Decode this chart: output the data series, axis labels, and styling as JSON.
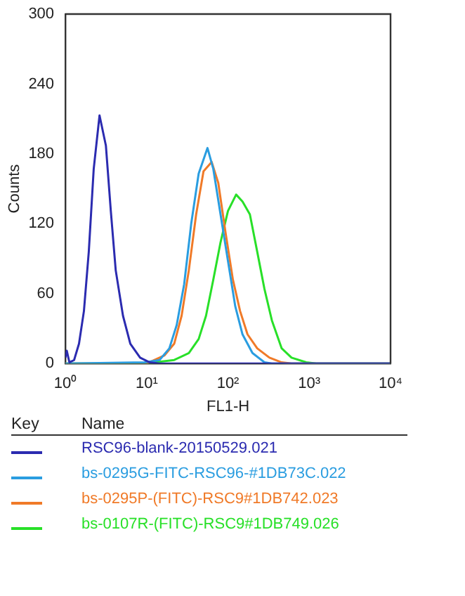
{
  "chart_data": {
    "type": "line",
    "xlabel": "FL1-H",
    "ylabel": "Counts",
    "legend_title": "Key",
    "annotations": [
      "Name"
    ],
    "log": "x",
    "xlim": [
      1,
      10000
    ],
    "ylim": [
      0,
      300
    ],
    "xticks": [
      {
        "value": 1,
        "label": "10⁰"
      },
      {
        "value": 10,
        "label": "10¹"
      },
      {
        "value": 100,
        "label": "10²"
      },
      {
        "value": 1000,
        "label": "10³"
      },
      {
        "value": 10000,
        "label": "10⁴"
      }
    ],
    "yticks": [
      0,
      60,
      120,
      180,
      240,
      300
    ],
    "grid": false,
    "legend": "bottom",
    "marker": "none",
    "line_style": "solid",
    "series": [
      {
        "name": "RSC96-blank-20150529.021",
        "color": "#2b2bb0",
        "x": [
          1,
          1.04,
          1.12,
          1.28,
          1.47,
          1.69,
          1.94,
          2.23,
          2.63,
          3.15,
          3.62,
          4.16,
          5.11,
          6.29,
          8.3,
          10.9,
          14.4,
          10000
        ],
        "values": [
          5,
          11,
          1,
          3,
          17,
          45,
          96,
          167,
          213,
          187,
          131,
          80,
          41,
          17,
          5,
          1,
          0,
          0
        ]
      },
      {
        "name": "bs-0295G-FITC-RSC96-#1DB73C.022",
        "color": "#2a9de0",
        "x": [
          1,
          9.5,
          14.4,
          19,
          23.4,
          28.9,
          35.3,
          43.6,
          56,
          66,
          81,
          100,
          123,
          151,
          200,
          281,
          347,
          10000
        ],
        "values": [
          0,
          1,
          3,
          13,
          33,
          68,
          120,
          163,
          185,
          167,
          128,
          88,
          49,
          25,
          9,
          1,
          0,
          0
        ]
      },
      {
        "name": "bs-0295P-(FITC)-RSC9#1DB742.023",
        "color": "#f07a28",
        "x": [
          1,
          10,
          16.6,
          21.8,
          26.9,
          33,
          40.6,
          50,
          63,
          76,
          93.5,
          115,
          141,
          174,
          229,
          324,
          458,
          605,
          10000
        ],
        "values": [
          0,
          0,
          7,
          17,
          41,
          80,
          128,
          165,
          173,
          155,
          112,
          72,
          45,
          25,
          13,
          5,
          1,
          0,
          0
        ]
      },
      {
        "name": "bs-0107R-(FITC)-RSC9#1DB749.026",
        "color": "#28e028",
        "x": [
          1,
          9.5,
          21.8,
          33,
          43.6,
          53.7,
          66,
          81,
          100,
          126,
          151,
          186,
          229,
          281,
          347,
          458,
          605,
          918,
          1220,
          10000
        ],
        "values": [
          0,
          0,
          3,
          9,
          21,
          41,
          72,
          104,
          131,
          145,
          139,
          128,
          96,
          64,
          37,
          13,
          5,
          1,
          0,
          0
        ]
      }
    ]
  }
}
